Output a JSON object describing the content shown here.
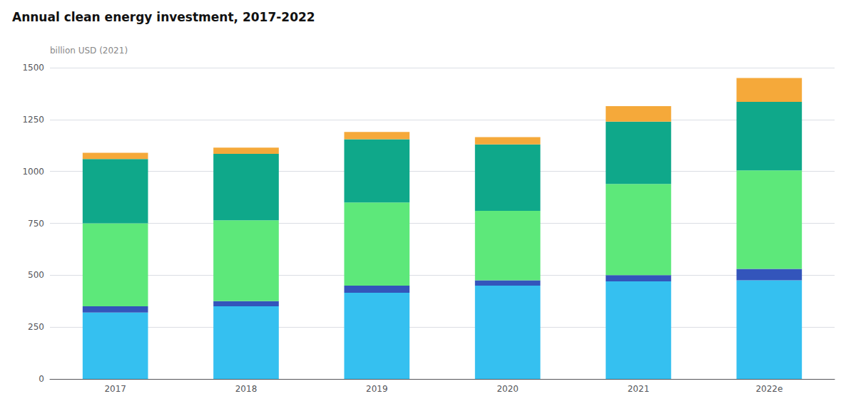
{
  "chart_data": {
    "type": "bar",
    "title": "Annual clean energy investment, 2017-2022",
    "ylabel": "billion USD (2021)",
    "categories": [
      "2017",
      "2018",
      "2019",
      "2020",
      "2021",
      "2022e"
    ],
    "stacked": true,
    "series": [
      {
        "color": "#35c0f0",
        "values": [
          320,
          350,
          415,
          450,
          470,
          475
        ]
      },
      {
        "color": "#3355bb",
        "values": [
          30,
          25,
          35,
          25,
          30,
          55
        ]
      },
      {
        "color": "#5de87a",
        "values": [
          400,
          390,
          400,
          335,
          440,
          475
        ]
      },
      {
        "color": "#0fa88a",
        "values": [
          310,
          320,
          305,
          320,
          300,
          330
        ]
      },
      {
        "color": "#f5a93a",
        "values": [
          30,
          30,
          35,
          35,
          75,
          115
        ]
      }
    ],
    "ylim": [
      0,
      1500
    ],
    "yticks": [
      0,
      250,
      500,
      750,
      1000,
      1250,
      1500
    ],
    "grid": true
  }
}
